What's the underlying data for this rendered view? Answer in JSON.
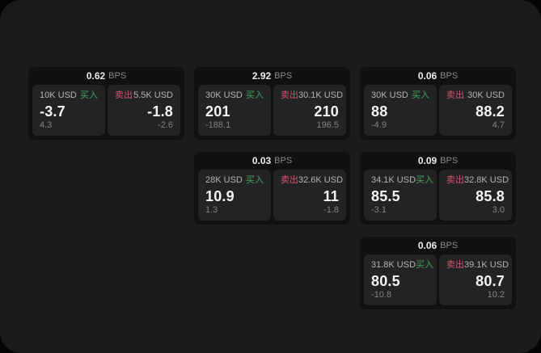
{
  "colors": {
    "background": "#050505",
    "panel": "#1b1b1c",
    "card": "#101011",
    "tile": "#232325",
    "buy_green": "#46a25f",
    "sell_red": "#d25770",
    "price_white": "#f4f4f4",
    "muted_gray": "#838385",
    "label_gray": "#b4b4b6"
  },
  "labels": {
    "bps_unit": "BPS",
    "buy": "买入",
    "sell": "卖出"
  },
  "cards": [
    {
      "bps": "0.62",
      "buy": {
        "size": "10K USD",
        "value": "-3.7",
        "sub": "4.3"
      },
      "sell": {
        "size": "5.5K USD",
        "value": "-1.8",
        "sub": "-2.6"
      }
    },
    {
      "bps": "2.92",
      "buy": {
        "size": "30K USD",
        "value": "201",
        "sub": "-188.1"
      },
      "sell": {
        "size": "30.1K USD",
        "value": "210",
        "sub": "196.5"
      }
    },
    {
      "bps": "0.06",
      "buy": {
        "size": "30K USD",
        "value": "88",
        "sub": "-4.9"
      },
      "sell": {
        "size": "30K USD",
        "value": "88.2",
        "sub": "4.7"
      }
    },
    {
      "bps": "0.03",
      "buy": {
        "size": "28K USD",
        "value": "10.9",
        "sub": "1.3"
      },
      "sell": {
        "size": "32.6K USD",
        "value": "11",
        "sub": "-1.8"
      }
    },
    {
      "bps": "0.09",
      "buy": {
        "size": "34.1K USD",
        "value": "85.5",
        "sub": "-3.1"
      },
      "sell": {
        "size": "32.8K USD",
        "value": "85.8",
        "sub": "3.0"
      }
    },
    {
      "bps": "0.06",
      "buy": {
        "size": "31.8K USD",
        "value": "80.5",
        "sub": "-10.8"
      },
      "sell": {
        "size": "39.1K USD",
        "value": "80.7",
        "sub": "10.2"
      }
    }
  ]
}
